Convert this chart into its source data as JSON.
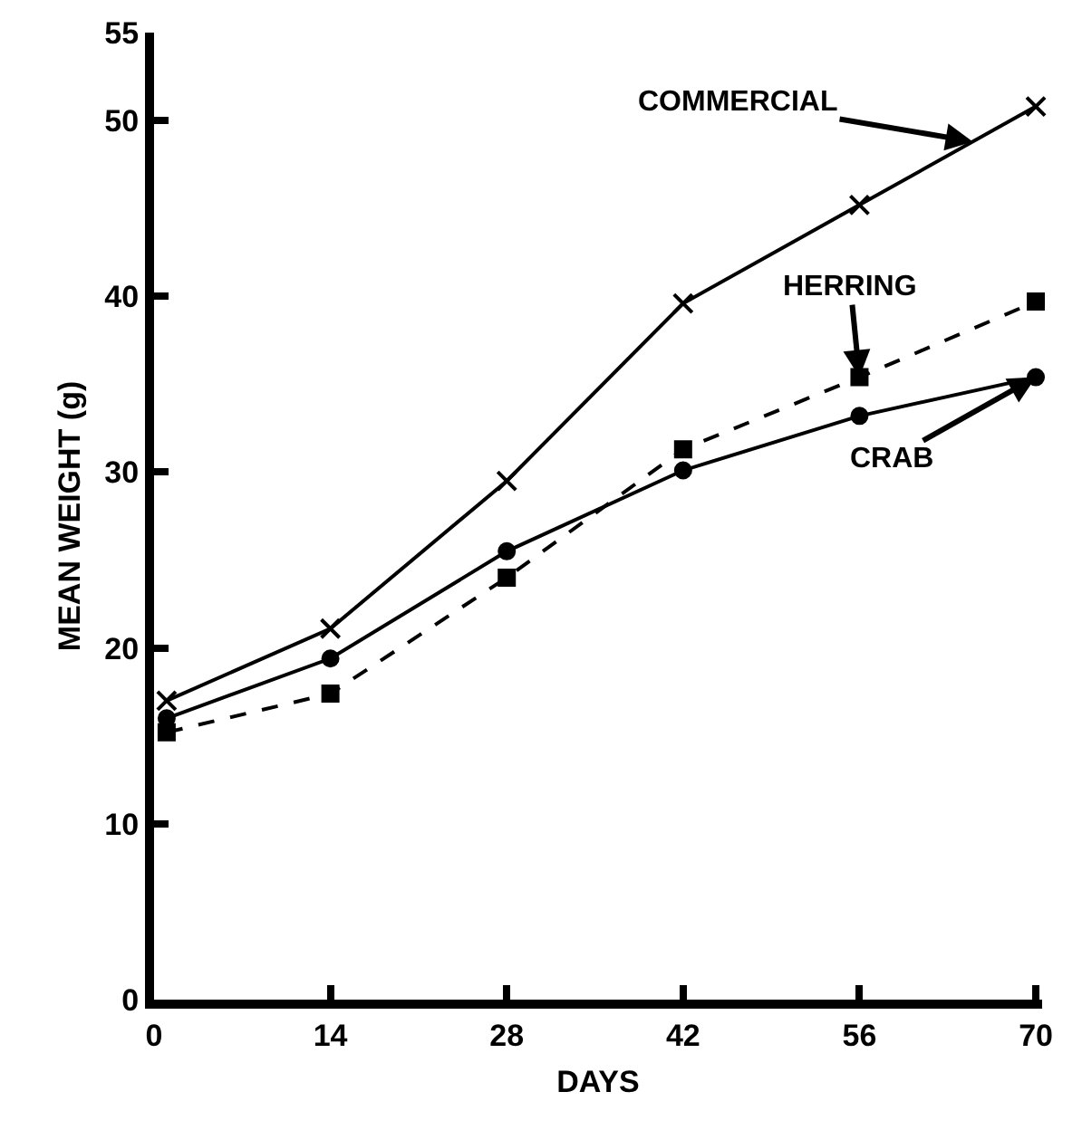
{
  "chart_data": {
    "type": "line",
    "xlabel": "DAYS",
    "ylabel": "MEAN WEIGHT (g)",
    "xlim": [
      0,
      70.5
    ],
    "xticks": [
      0,
      14,
      28,
      42,
      56,
      70
    ],
    "ylim": [
      0,
      55
    ],
    "yticks": [
      0,
      10,
      20,
      30,
      40,
      50,
      55
    ],
    "grid": false,
    "x": [
      1,
      14,
      28,
      42,
      56,
      70
    ],
    "series": [
      {
        "color": "#000000",
        "marker": "cross",
        "line_style": "solid",
        "values": [
          17.0,
          21.1,
          29.5,
          39.6,
          45.2,
          50.8
        ]
      },
      {
        "color": "#000000",
        "marker": "square",
        "line_style": "dashed",
        "values": [
          15.2,
          17.4,
          24.0,
          31.3,
          35.4,
          39.7
        ]
      },
      {
        "color": "#000000",
        "marker": "circle",
        "line_style": "solid",
        "values": [
          16.0,
          19.4,
          25.5,
          30.1,
          33.2,
          35.4
        ]
      }
    ],
    "annotations": [
      {
        "text": "COMMERCIAL",
        "x": 65,
        "y": 48.8
      },
      {
        "text": "HERRING",
        "x": 56,
        "y": 35.4
      },
      {
        "text": "CRAB",
        "x": 70,
        "y": 35.4
      }
    ]
  }
}
